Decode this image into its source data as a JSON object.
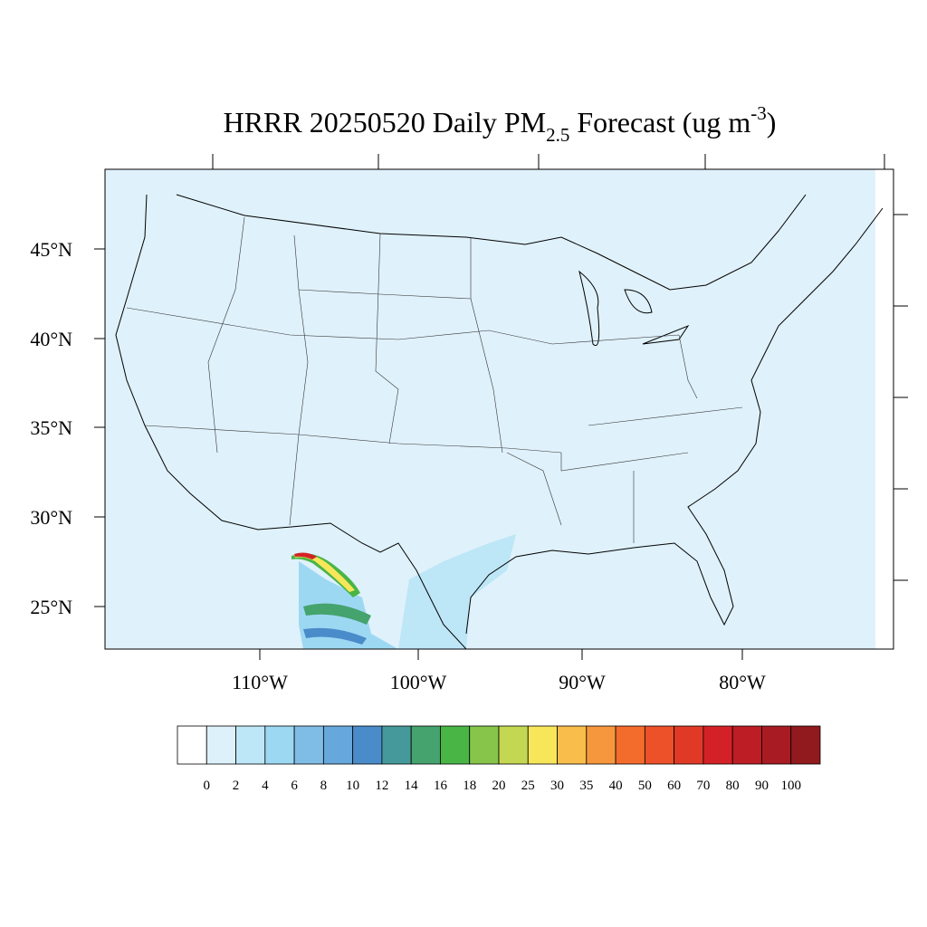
{
  "header": {
    "title_main": "HRRR 20250520 Daily PM",
    "title_sub": "2.5",
    "title_middle": " Forecast (ug m",
    "title_sup": "-3",
    "title_end": ")"
  },
  "map": {
    "lat_labels": [
      "45°N",
      "40°N",
      "35°N",
      "30°N",
      "25°N"
    ],
    "lon_labels": [
      "110°W",
      "100°W",
      "90°W",
      "80°W"
    ]
  },
  "colorbar": {
    "colors": [
      "#ffffff",
      "#ddf1fb",
      "#bde6f7",
      "#9dd8f3",
      "#80bde6",
      "#66a8db",
      "#4a8bc9",
      "#46999a",
      "#45a36e",
      "#49b545",
      "#86c54a",
      "#c3d752",
      "#f7e65a",
      "#f8bd4a",
      "#f7973d",
      "#f46c2c",
      "#ec5129",
      "#e03a26",
      "#d42127",
      "#bd1d24",
      "#a81b22",
      "#911a1e"
    ],
    "labels": [
      0,
      2,
      4,
      6,
      8,
      10,
      12,
      14,
      16,
      18,
      20,
      25,
      30,
      35,
      40,
      50,
      60,
      70,
      80,
      90,
      100
    ]
  }
}
